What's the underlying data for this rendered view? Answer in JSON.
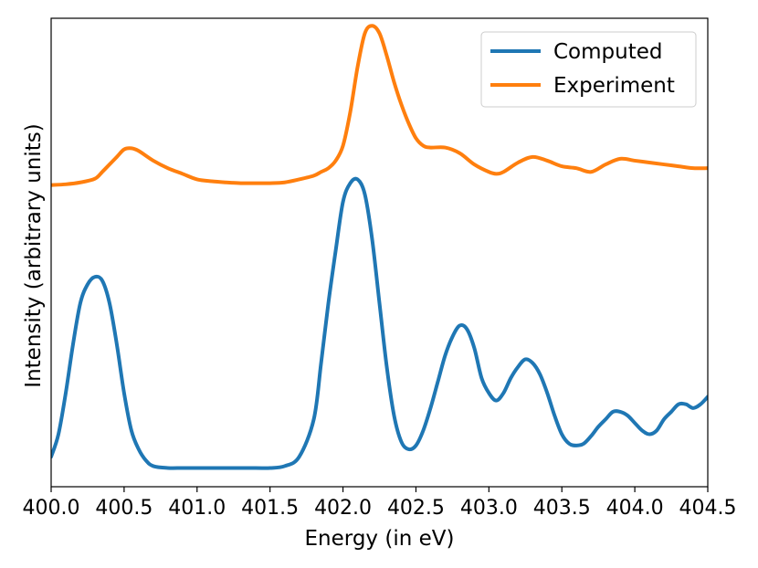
{
  "chart_data": {
    "type": "line",
    "title": "",
    "xlabel": "Energy (in eV)",
    "ylabel": "Intensity (arbitrary units)",
    "xlim": [
      400.0,
      404.5
    ],
    "ylim": [
      -0.05,
      1.2
    ],
    "xticks": [
      "400.0",
      "400.5",
      "401.0",
      "401.5",
      "402.0",
      "402.5",
      "403.0",
      "403.5",
      "404.0",
      "404.5"
    ],
    "yticks_visible": false,
    "grid": false,
    "legend_position": "top-right",
    "series": [
      {
        "name": "Computed",
        "color": "#1f77b4",
        "x": [
          400.0,
          400.05,
          400.1,
          400.15,
          400.2,
          400.25,
          400.3,
          400.35,
          400.4,
          400.45,
          400.5,
          400.55,
          400.6,
          400.65,
          400.7,
          400.8,
          400.9,
          401.0,
          401.2,
          401.4,
          401.5,
          401.6,
          401.7,
          401.8,
          401.85,
          401.9,
          401.95,
          402.0,
          402.05,
          402.1,
          402.15,
          402.2,
          402.25,
          402.3,
          402.35,
          402.4,
          402.45,
          402.5,
          402.55,
          402.6,
          402.65,
          402.7,
          402.75,
          402.8,
          402.85,
          402.9,
          402.95,
          403.0,
          403.05,
          403.1,
          403.15,
          403.2,
          403.25,
          403.3,
          403.35,
          403.4,
          403.45,
          403.5,
          403.55,
          403.6,
          403.65,
          403.7,
          403.75,
          403.8,
          403.85,
          403.9,
          403.95,
          404.0,
          404.05,
          404.1,
          404.15,
          404.2,
          404.25,
          404.3,
          404.35,
          404.4,
          404.45,
          404.5
        ],
        "y": [
          0.03,
          0.09,
          0.2,
          0.33,
          0.44,
          0.49,
          0.51,
          0.5,
          0.44,
          0.33,
          0.2,
          0.1,
          0.05,
          0.02,
          0.005,
          0.0,
          0.0,
          0.0,
          0.0,
          0.0,
          0.0,
          0.005,
          0.03,
          0.13,
          0.28,
          0.44,
          0.58,
          0.71,
          0.76,
          0.77,
          0.73,
          0.61,
          0.44,
          0.27,
          0.14,
          0.07,
          0.05,
          0.06,
          0.1,
          0.16,
          0.23,
          0.3,
          0.35,
          0.38,
          0.37,
          0.32,
          0.24,
          0.2,
          0.18,
          0.2,
          0.24,
          0.27,
          0.29,
          0.28,
          0.25,
          0.2,
          0.14,
          0.09,
          0.065,
          0.06,
          0.065,
          0.085,
          0.11,
          0.13,
          0.15,
          0.15,
          0.14,
          0.12,
          0.1,
          0.09,
          0.1,
          0.13,
          0.15,
          0.17,
          0.17,
          0.16,
          0.17,
          0.19
        ]
      },
      {
        "name": "Experiment",
        "color": "#ff7f0e",
        "x": [
          400.0,
          400.1,
          400.2,
          400.3,
          400.35,
          400.4,
          400.45,
          400.5,
          400.55,
          400.6,
          400.7,
          400.8,
          400.9,
          401.0,
          401.1,
          401.2,
          401.3,
          401.4,
          401.5,
          401.6,
          401.7,
          401.8,
          401.85,
          401.9,
          401.95,
          402.0,
          402.05,
          402.1,
          402.15,
          402.2,
          402.25,
          402.3,
          402.35,
          402.4,
          402.45,
          402.5,
          402.55,
          402.6,
          402.7,
          402.8,
          402.9,
          403.0,
          403.05,
          403.1,
          403.2,
          403.3,
          403.4,
          403.5,
          403.6,
          403.7,
          403.8,
          403.9,
          404.0,
          404.1,
          404.2,
          404.3,
          404.4,
          404.5
        ],
        "y": [
          0.755,
          0.757,
          0.762,
          0.772,
          0.79,
          0.81,
          0.83,
          0.85,
          0.853,
          0.846,
          0.82,
          0.8,
          0.785,
          0.77,
          0.765,
          0.762,
          0.76,
          0.76,
          0.76,
          0.762,
          0.77,
          0.78,
          0.79,
          0.8,
          0.82,
          0.86,
          0.95,
          1.07,
          1.16,
          1.18,
          1.16,
          1.1,
          1.03,
          0.97,
          0.92,
          0.88,
          0.86,
          0.855,
          0.855,
          0.84,
          0.81,
          0.79,
          0.785,
          0.79,
          0.815,
          0.83,
          0.82,
          0.805,
          0.8,
          0.79,
          0.81,
          0.825,
          0.82,
          0.815,
          0.81,
          0.805,
          0.8,
          0.8
        ]
      }
    ]
  }
}
